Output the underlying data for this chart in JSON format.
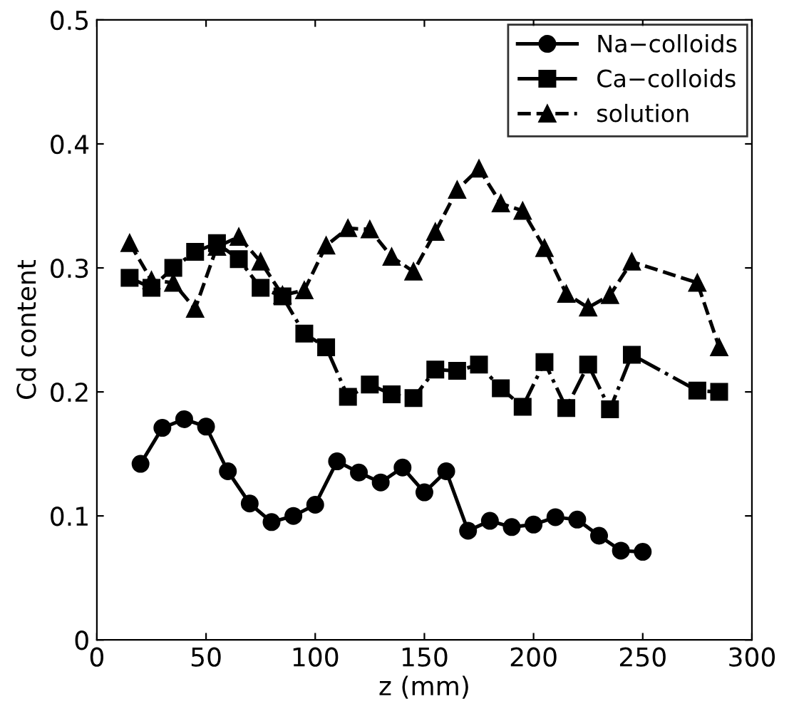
{
  "chart_data": {
    "type": "line",
    "xlabel": "z (mm)",
    "ylabel": "Cd content",
    "xlim": [
      0,
      300
    ],
    "ylim": [
      0,
      0.5
    ],
    "xticks": [
      0,
      50,
      100,
      150,
      200,
      250,
      300
    ],
    "yticks": [
      0,
      0.1,
      0.2,
      0.3,
      0.4,
      0.5
    ],
    "grid": false,
    "legend": "top right",
    "series": [
      {
        "name": "Na−colloids",
        "color": "#000000",
        "marker": "circle",
        "line_style": "solid",
        "x": [
          20,
          30,
          40,
          50,
          60,
          70,
          80,
          90,
          100,
          110,
          120,
          130,
          140,
          150,
          160,
          170,
          180,
          190,
          200,
          210,
          220,
          230,
          240,
          250
        ],
        "values": [
          0.142,
          0.171,
          0.178,
          0.172,
          0.136,
          0.11,
          0.095,
          0.1,
          0.109,
          0.144,
          0.135,
          0.127,
          0.139,
          0.119,
          0.136,
          0.088,
          0.096,
          0.091,
          0.093,
          0.099,
          0.097,
          0.084,
          0.072,
          0.071
        ]
      },
      {
        "name": "Ca−colloids",
        "color": "#000000",
        "marker": "square",
        "line_style": "dashdot",
        "x": [
          15,
          25,
          35,
          45,
          55,
          65,
          75,
          85,
          95,
          105,
          115,
          125,
          135,
          145,
          155,
          165,
          175,
          185,
          195,
          205,
          215,
          225,
          235,
          245,
          275,
          285
        ],
        "values": [
          0.292,
          0.284,
          0.3,
          0.313,
          0.32,
          0.307,
          0.284,
          0.277,
          0.247,
          0.236,
          0.196,
          0.206,
          0.198,
          0.195,
          0.218,
          0.217,
          0.222,
          0.203,
          0.188,
          0.224,
          0.187,
          0.222,
          0.186,
          0.23,
          0.201,
          0.2
        ]
      },
      {
        "name": "solution",
        "color": "#000000",
        "marker": "triangle",
        "line_style": "dashed",
        "x": [
          15,
          25,
          35,
          45,
          55,
          65,
          75,
          85,
          95,
          105,
          115,
          125,
          135,
          145,
          155,
          165,
          175,
          185,
          195,
          205,
          215,
          225,
          235,
          245,
          275,
          285
        ],
        "values": [
          0.32,
          0.29,
          0.288,
          0.267,
          0.317,
          0.325,
          0.305,
          0.278,
          0.282,
          0.318,
          0.332,
          0.331,
          0.309,
          0.297,
          0.329,
          0.363,
          0.38,
          0.352,
          0.346,
          0.316,
          0.279,
          0.268,
          0.278,
          0.305,
          0.288,
          0.236
        ]
      }
    ]
  }
}
